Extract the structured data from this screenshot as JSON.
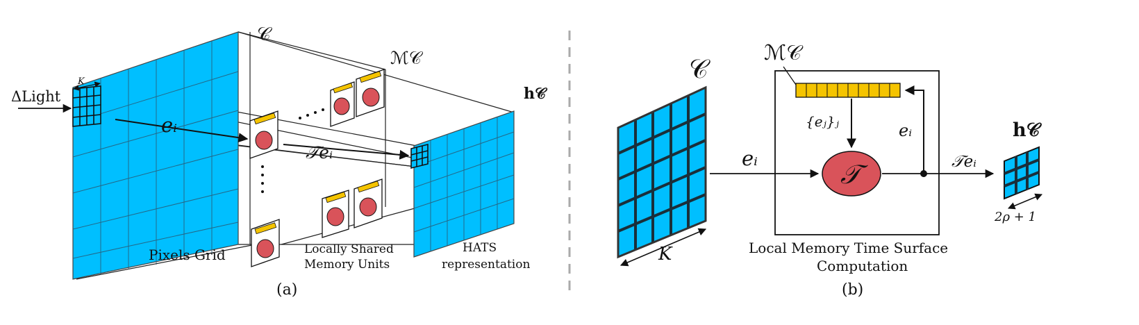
{
  "panel_a": {
    "input_label": "ΔLight",
    "kernel_label": "K",
    "cells_label": "𝒞",
    "memory_label": "ℳ𝒞",
    "output_label": "h𝒞",
    "event_label": "eᵢ",
    "surface_label": "𝒯eᵢ",
    "grid_caption": "Pixels Grid",
    "memory_caption_line1": "Locally Shared",
    "memory_caption_line2": "Memory Units",
    "hats_caption_line1": "HATS",
    "hats_caption_line2": "representation",
    "panel_label": "(a)"
  },
  "panel_b": {
    "cell_label": "𝒞",
    "kernel_label": "K",
    "memory_label": "ℳ𝒞",
    "past_events_label": "{eⱼ}ⱼ",
    "event_in_label": "eᵢ",
    "event_feedback_label": "eᵢ",
    "operator_label": "𝒯",
    "surface_label": "𝒯eᵢ",
    "output_label": "h𝒞",
    "size_label": "2ρ + 1",
    "box_caption_line1": "Local Memory Time Surface",
    "box_caption_line2": "Computation",
    "panel_label": "(b)"
  },
  "colors": {
    "cyan": "#00BFFF",
    "memory_yellow": "#F5C400",
    "operator_red": "#D9535A",
    "divider_gray": "#AAAAAA"
  }
}
